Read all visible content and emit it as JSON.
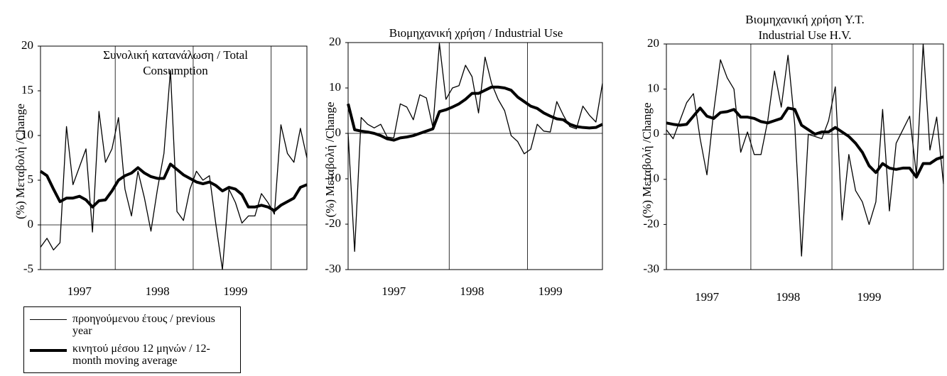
{
  "chart_data": [
    {
      "type": "line",
      "title": [
        "Συνολική κατανάλωση / Total",
        "Consumption"
      ],
      "ylabel": "(%) Μεταβολή /Change",
      "categories": [
        null,
        null,
        null,
        null,
        null,
        null,
        "1997",
        null,
        null,
        null,
        null,
        null,
        null,
        null,
        null,
        null,
        null,
        null,
        "1998",
        null,
        null,
        null,
        null,
        null,
        null,
        null,
        null,
        null,
        null,
        null,
        "1999",
        null,
        null,
        null,
        null,
        null,
        null,
        null,
        null,
        null,
        null,
        null
      ],
      "ylim": [
        -5,
        20
      ],
      "yticks": [
        -5,
        0,
        5,
        10,
        15,
        20
      ],
      "series": [
        {
          "name": "προηγούμενου έτους / previous year",
          "color": "#000000",
          "line_width": 1.3,
          "values": [
            -2.5,
            -1.5,
            -2.8,
            -2,
            11,
            4.5,
            6.5,
            8.5,
            -0.8,
            12.7,
            7,
            8.5,
            12,
            4,
            1,
            6,
            3,
            -0.7,
            4,
            8,
            17.3,
            1.5,
            0.5,
            4,
            6,
            5,
            5.5,
            0,
            -5,
            4,
            2.5,
            0.2,
            1,
            1,
            3.5,
            2.5,
            1.2,
            11.2,
            8,
            7,
            10.8,
            7.5
          ]
        },
        {
          "name": "κινητού μέσου 12 μηνών / 12-month moving average",
          "color": "#000000",
          "line_width": 4,
          "values": [
            6,
            5.5,
            4,
            2.6,
            3,
            3,
            3.2,
            2.8,
            2,
            2.7,
            2.8,
            3.8,
            5,
            5.5,
            5.8,
            6.4,
            5.8,
            5.4,
            5.2,
            5.2,
            6.8,
            6.2,
            5.6,
            5.2,
            4.8,
            4.6,
            4.8,
            4.4,
            3.8,
            4.2,
            4,
            3.4,
            2,
            2,
            2.2,
            2,
            1.6,
            2.2,
            2.6,
            3,
            4.2,
            4.5
          ]
        }
      ]
    },
    {
      "type": "line",
      "title": [
        "Βιομηχανική χρήση / Industrial Use"
      ],
      "ylabel": "(%) Μεταβολή /Change",
      "categories": [
        null,
        null,
        null,
        null,
        null,
        null,
        null,
        "1997",
        null,
        null,
        null,
        null,
        null,
        null,
        null,
        null,
        null,
        null,
        null,
        "1998",
        null,
        null,
        null,
        null,
        null,
        null,
        null,
        null,
        null,
        null,
        null,
        "1999",
        null,
        null,
        null,
        null,
        null,
        null,
        null,
        null
      ],
      "ylim": [
        -30,
        20
      ],
      "yticks": [
        -30,
        -20,
        -10,
        0,
        10,
        20
      ],
      "series": [
        {
          "color": "#000000",
          "line_width": 1.3,
          "values": [
            0,
            -26,
            3.5,
            2,
            1.2,
            2,
            -0.8,
            -1,
            6.5,
            5.8,
            3,
            8.5,
            7.8,
            1.3,
            19.8,
            7.5,
            10,
            10.5,
            15,
            12.5,
            4.5,
            16.8,
            11,
            7.5,
            5,
            -0.5,
            -1.8,
            -4.5,
            -3.5,
            2,
            0.5,
            0.3,
            7,
            4,
            1.5,
            1,
            6,
            4,
            2.5,
            11
          ]
        },
        {
          "color": "#000000",
          "line_width": 4,
          "values": [
            6.5,
            0.8,
            0.5,
            0.3,
            0,
            -0.5,
            -1.2,
            -1.5,
            -1,
            -0.8,
            -0.5,
            0,
            0.5,
            1,
            4.8,
            5.2,
            5.8,
            6.5,
            7.5,
            8.8,
            8.8,
            9.5,
            10.2,
            10.2,
            10,
            9.5,
            8,
            7,
            6,
            5.5,
            4.5,
            3.8,
            3.2,
            3,
            2,
            1.5,
            1.3,
            1.2,
            1.3,
            2
          ]
        }
      ]
    },
    {
      "type": "line",
      "title": [
        "Βιομηχανική χρήση Y.T.",
        "Industrial Use H.V."
      ],
      "ylabel": "(%) Μεταβολή /Change",
      "categories": [
        null,
        null,
        null,
        null,
        null,
        null,
        "1997",
        null,
        null,
        null,
        null,
        null,
        null,
        null,
        null,
        null,
        null,
        null,
        "1998",
        null,
        null,
        null,
        null,
        null,
        null,
        null,
        null,
        null,
        null,
        null,
        "1999",
        null,
        null,
        null,
        null,
        null,
        null,
        null,
        null,
        null,
        null,
        null
      ],
      "ylim": [
        -30,
        20
      ],
      "yticks": [
        -30,
        -20,
        -10,
        0,
        10,
        20
      ],
      "series": [
        {
          "color": "#000000",
          "line_width": 1.3,
          "values": [
            1,
            -1,
            3,
            7,
            9,
            -1,
            -9,
            5,
            16.5,
            12.5,
            10,
            -4,
            0.5,
            -4.5,
            -4.5,
            3,
            14,
            6,
            17.5,
            2,
            -27,
            0,
            -0.5,
            -1,
            3,
            10.5,
            -19,
            -4.5,
            -12.5,
            -15,
            -20,
            -15,
            5.5,
            -17,
            -2,
            1,
            4,
            -9,
            20,
            -3.5,
            3.8,
            -11
          ]
        },
        {
          "color": "#000000",
          "line_width": 4,
          "values": [
            2.5,
            2.2,
            2,
            2.2,
            4,
            5.8,
            4,
            3.5,
            4.8,
            5,
            5.5,
            3.8,
            3.8,
            3.5,
            2.8,
            2.5,
            3,
            3.5,
            5.8,
            5.5,
            2,
            1,
            0,
            0.5,
            0.5,
            1.5,
            0.5,
            -0.5,
            -2,
            -4,
            -7,
            -8.5,
            -6.5,
            -7.5,
            -7.8,
            -7.5,
            -7.5,
            -9.5,
            -6.5,
            -6.5,
            -5.5,
            -5
          ]
        }
      ]
    }
  ]
}
